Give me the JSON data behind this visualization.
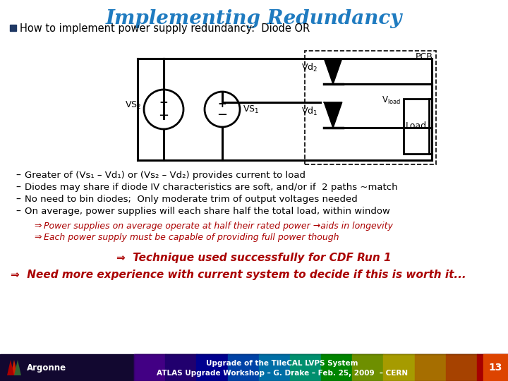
{
  "title": "Implementing Redundancy",
  "title_color": "#1F7BC0",
  "bg_color": "#FFFFFF",
  "bullet_header": "How to implement power supply redundancy:  Diode OR",
  "bullet_color": "#000000",
  "bullet_square_color": "#1F3864",
  "bullet_points": [
    "Greater of (Vs₁ – Vd₁) or (Vs₂ – Vd₂) provides current to load",
    "Diodes may share if diode IV characteristics are soft, and/or if  2 paths ~match",
    "No need to bin diodes;  Only moderate trim of output voltages needed",
    "On average, power supplies will each share half the total load, within window"
  ],
  "sub_bullets": [
    "Power supplies on average operate at half their rated power →aids in longevity",
    "Each power supply must be capable of providing full power though"
  ],
  "sub_bullet_color": "#AA0000",
  "emphasis1": "⇒  Technique used successfully for CDF Run 1",
  "emphasis1_color": "#AA0000",
  "emphasis2": "⇒  Need more experience with current system to decide if this is worth it...",
  "emphasis2_color": "#AA0000",
  "footer_text1": "Upgrade of the TileCAL LVPS System",
  "footer_text2": "ATLAS Upgrade Workshop – G. Drake – Feb. 25, 2009  – CERN",
  "footer_page": "13"
}
